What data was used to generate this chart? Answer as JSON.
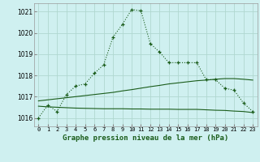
{
  "title": "Graphe pression niveau de la mer (hPa)",
  "bg_color": "#cff0f0",
  "grid_color": "#b0d8d0",
  "line_color": "#1a5c1a",
  "xlim": [
    -0.5,
    23.5
  ],
  "ylim": [
    1015.6,
    1021.4
  ],
  "yticks": [
    1016,
    1017,
    1018,
    1019,
    1020,
    1021
  ],
  "xticks": [
    0,
    1,
    2,
    3,
    4,
    5,
    6,
    7,
    8,
    9,
    10,
    11,
    12,
    13,
    14,
    15,
    16,
    17,
    18,
    19,
    20,
    21,
    22,
    23
  ],
  "pressure_main": [
    1016.0,
    1016.6,
    1016.3,
    1017.1,
    1017.5,
    1017.6,
    1018.1,
    1018.5,
    1019.8,
    1020.4,
    1021.1,
    1021.05,
    1019.5,
    1019.1,
    1018.6,
    1018.6,
    1018.6,
    1018.6,
    1017.8,
    1017.8,
    1017.4,
    1017.3,
    1016.7,
    1016.3
  ],
  "pressure_linear_up": [
    1016.8,
    1016.85,
    1016.9,
    1016.95,
    1017.0,
    1017.05,
    1017.1,
    1017.15,
    1017.2,
    1017.27,
    1017.33,
    1017.4,
    1017.47,
    1017.53,
    1017.6,
    1017.65,
    1017.7,
    1017.75,
    1017.78,
    1017.82,
    1017.85,
    1017.85,
    1017.82,
    1017.78
  ],
  "pressure_flat_low": [
    1016.55,
    1016.52,
    1016.5,
    1016.48,
    1016.46,
    1016.45,
    1016.44,
    1016.43,
    1016.43,
    1016.43,
    1016.42,
    1016.42,
    1016.41,
    1016.41,
    1016.41,
    1016.4,
    1016.4,
    1016.4,
    1016.38,
    1016.36,
    1016.35,
    1016.32,
    1016.3,
    1016.25
  ]
}
